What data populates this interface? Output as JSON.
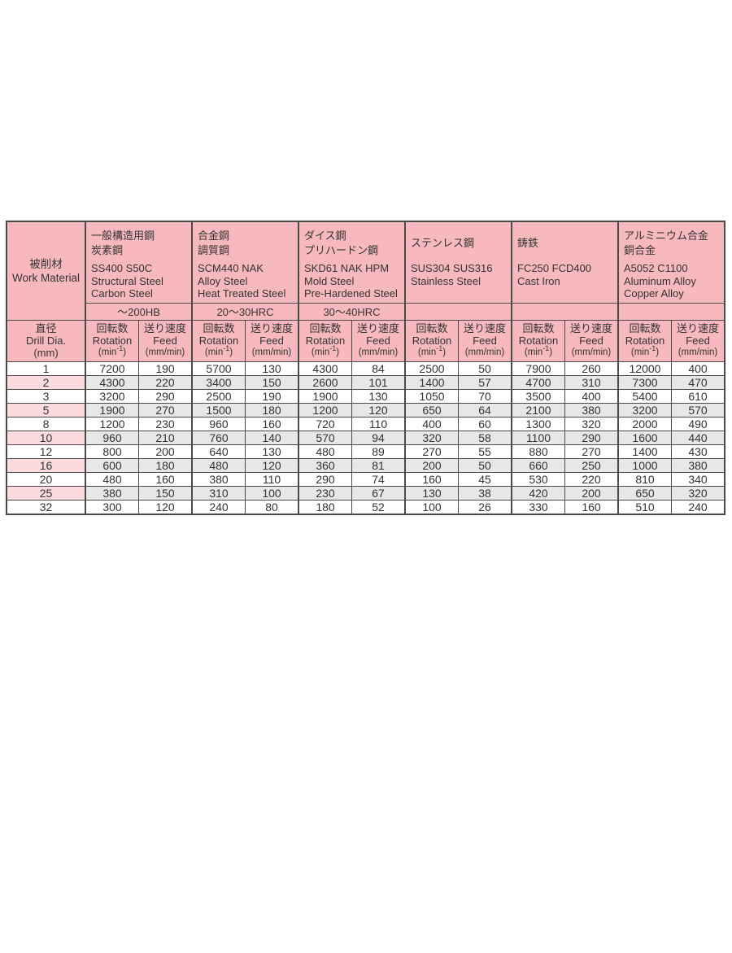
{
  "colors": {
    "header_pink": "#f7b9bd",
    "row_highlight_pink": "#fbdbde",
    "row_highlight_gray": "#e7e7e7",
    "border": "#4a4a4a",
    "text": "#333333",
    "page_background": "#ffffff"
  },
  "table": {
    "work_material_header": {
      "jp": "被削材",
      "en": "Work Material"
    },
    "dia_header": {
      "jp": "直径",
      "en": "Drill Dia.",
      "unit": "(mm)"
    },
    "sub_headers": {
      "rotation": {
        "jp": "回転数",
        "en": "Rotation",
        "unit_prefix": "(min",
        "unit_sup": "-1",
        "unit_suffix": ")"
      },
      "feed": {
        "jp": "送り速度",
        "en": "Feed",
        "unit": "(mm/min)"
      }
    },
    "materials": [
      {
        "id": "ss400",
        "jp_lines": [
          "一般構造用鋼",
          "炭素鋼"
        ],
        "en_lines": [
          "SS400 S50C",
          "Structural Steel",
          "Carbon Steel"
        ],
        "hardness": "～200HB"
      },
      {
        "id": "scm440",
        "jp_lines": [
          "合金鋼",
          "調質鋼"
        ],
        "en_lines": [
          "SCM440 NAK",
          "Alloy Steel",
          "Heat Treated Steel"
        ],
        "hardness": "20～30HRC"
      },
      {
        "id": "skd61",
        "jp_lines": [
          "ダイス鋼",
          "プリハードン鋼"
        ],
        "en_lines": [
          "SKD61 NAK HPM",
          "Mold Steel",
          "Pre-Hardened Steel"
        ],
        "hardness": "30～40HRC"
      },
      {
        "id": "sus",
        "jp_lines": [
          "ステンレス鋼"
        ],
        "en_lines": [
          "SUS304 SUS316",
          "Stainless Steel"
        ],
        "hardness": ""
      },
      {
        "id": "fc",
        "jp_lines": [
          "鋳鉄"
        ],
        "en_lines": [
          "FC250  FCD400",
          "Cast Iron"
        ],
        "hardness": ""
      },
      {
        "id": "al",
        "jp_lines": [
          "アルミニウム合金",
          "銅合金"
        ],
        "en_lines": [
          "A5052 C1100",
          "Aluminum Alloy",
          "Copper Alloy"
        ],
        "hardness": ""
      }
    ],
    "rows": [
      {
        "dia": "1",
        "values": [
          7200,
          190,
          5700,
          130,
          4300,
          84,
          2500,
          50,
          7900,
          260,
          12000,
          400
        ]
      },
      {
        "dia": "2",
        "values": [
          4300,
          220,
          3400,
          150,
          2600,
          101,
          1400,
          57,
          4700,
          310,
          7300,
          470
        ]
      },
      {
        "dia": "3",
        "values": [
          3200,
          290,
          2500,
          190,
          1900,
          130,
          1050,
          70,
          3500,
          400,
          5400,
          610
        ]
      },
      {
        "dia": "5",
        "values": [
          1900,
          270,
          1500,
          180,
          1200,
          120,
          650,
          64,
          2100,
          380,
          3200,
          570
        ]
      },
      {
        "dia": "8",
        "values": [
          1200,
          230,
          960,
          160,
          720,
          110,
          400,
          60,
          1300,
          320,
          2000,
          490
        ]
      },
      {
        "dia": "10",
        "values": [
          960,
          210,
          760,
          140,
          570,
          94,
          320,
          58,
          1100,
          290,
          1600,
          440
        ]
      },
      {
        "dia": "12",
        "values": [
          800,
          200,
          640,
          130,
          480,
          89,
          270,
          55,
          880,
          270,
          1400,
          430
        ]
      },
      {
        "dia": "16",
        "values": [
          600,
          180,
          480,
          120,
          360,
          81,
          200,
          50,
          660,
          250,
          1000,
          380
        ]
      },
      {
        "dia": "20",
        "values": [
          480,
          160,
          380,
          110,
          290,
          74,
          160,
          45,
          530,
          220,
          810,
          340
        ]
      },
      {
        "dia": "25",
        "values": [
          380,
          150,
          310,
          100,
          230,
          67,
          130,
          38,
          420,
          200,
          650,
          320
        ]
      },
      {
        "dia": "32",
        "values": [
          300,
          120,
          240,
          80,
          180,
          52,
          100,
          26,
          330,
          160,
          510,
          240
        ]
      }
    ]
  }
}
